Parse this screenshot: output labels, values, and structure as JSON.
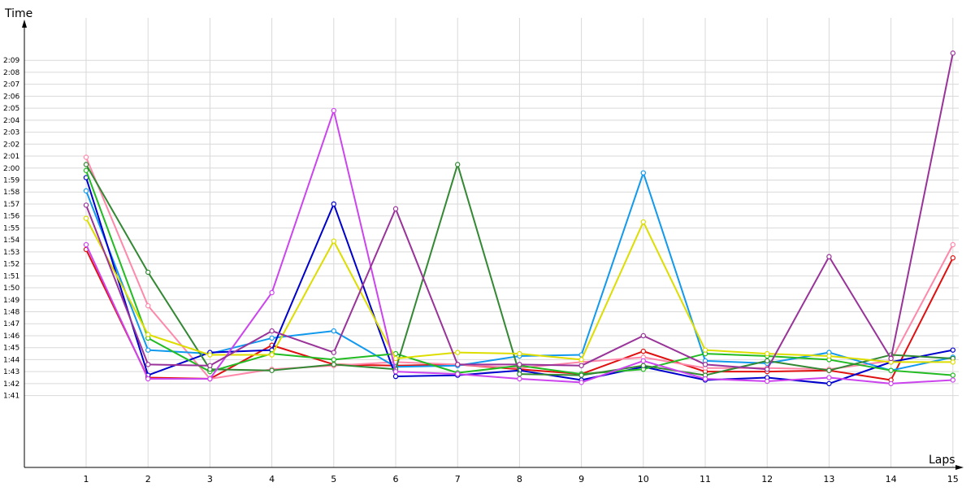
{
  "chart_data": {
    "type": "line",
    "ylabel": "Time",
    "xlabel": "Laps",
    "x": [
      1,
      2,
      3,
      4,
      5,
      6,
      7,
      8,
      9,
      10,
      11,
      12,
      13,
      14,
      15
    ],
    "x_tick_labels": [
      "1",
      "2",
      "3",
      "4",
      "5",
      "6",
      "7",
      "8",
      "9",
      "10",
      "11",
      "12",
      "13",
      "14",
      "15"
    ],
    "y_unit": "seconds",
    "ylim": [
      95,
      132
    ],
    "y_ticks": [
      101,
      102,
      103,
      104,
      105,
      106,
      107,
      108,
      109,
      110,
      111,
      112,
      113,
      114,
      115,
      116,
      117,
      118,
      119,
      120,
      121,
      122,
      123,
      124,
      125,
      126,
      127,
      128,
      129
    ],
    "y_tick_labels": [
      "1:41",
      "1:42",
      "1:43",
      "1:44",
      "1:45",
      "1:46",
      "1:47",
      "1:48",
      "1:49",
      "1:50",
      "1:51",
      "1:52",
      "1:53",
      "1:54",
      "1:55",
      "1:56",
      "1:57",
      "1:58",
      "1:59",
      "2:00",
      "2:01",
      "2:02",
      "2:03",
      "2:04",
      "2:05",
      "2:06",
      "2:07",
      "2:08",
      "2:09"
    ],
    "grid": true,
    "legend": "none",
    "series": [
      {
        "color": "#e01010",
        "values": [
          113.2,
          102.5,
          102.4,
          105.2,
          103.6,
          103.5,
          103.6,
          103.2,
          102.8,
          104.7,
          103.0,
          103.0,
          103.1,
          102.3,
          112.5
        ]
      },
      {
        "color": "#ff88aa",
        "values": [
          120.9,
          108.5,
          102.4,
          103.2,
          103.5,
          103.8,
          103.6,
          103.3,
          103.8,
          104.2,
          103.3,
          103.3,
          103.2,
          103.9,
          113.6
        ]
      },
      {
        "color": "#1199ee",
        "values": [
          118.1,
          104.8,
          104.5,
          105.8,
          106.4,
          103.4,
          103.5,
          104.3,
          104.4,
          119.6,
          103.9,
          103.7,
          104.6,
          103.1,
          104.2
        ]
      },
      {
        "color": "#0000cc",
        "values": [
          119.2,
          102.7,
          104.6,
          104.8,
          117.0,
          102.6,
          102.7,
          103.1,
          102.3,
          103.4,
          102.3,
          102.5,
          102.0,
          103.8,
          104.8
        ]
      },
      {
        "color": "#22bb22",
        "values": [
          119.8,
          105.8,
          103.0,
          104.5,
          104.0,
          104.5,
          102.9,
          103.5,
          102.8,
          103.2,
          104.5,
          104.3,
          104.0,
          103.1,
          102.7
        ]
      },
      {
        "color": "#338833",
        "values": [
          120.3,
          111.3,
          103.2,
          103.1,
          103.6,
          103.2,
          120.3,
          102.8,
          102.7,
          103.5,
          102.7,
          103.9,
          103.1,
          104.4,
          104.1
        ]
      },
      {
        "color": "#dddd00",
        "values": [
          115.8,
          106.1,
          104.4,
          104.4,
          113.9,
          104.1,
          104.6,
          104.5,
          104.0,
          115.5,
          104.8,
          104.5,
          104.3,
          103.8,
          103.8
        ]
      },
      {
        "color": "#cc44ee",
        "values": [
          113.6,
          102.4,
          102.4,
          109.6,
          124.8,
          103.0,
          102.8,
          102.4,
          102.1,
          103.9,
          102.4,
          102.2,
          102.5,
          102.0,
          102.3
        ]
      },
      {
        "color": "#993399",
        "values": [
          116.9,
          103.6,
          103.5,
          106.4,
          104.6,
          116.6,
          103.6,
          103.6,
          103.5,
          106.0,
          103.6,
          103.2,
          112.6,
          104.1,
          129.6
        ]
      }
    ]
  }
}
